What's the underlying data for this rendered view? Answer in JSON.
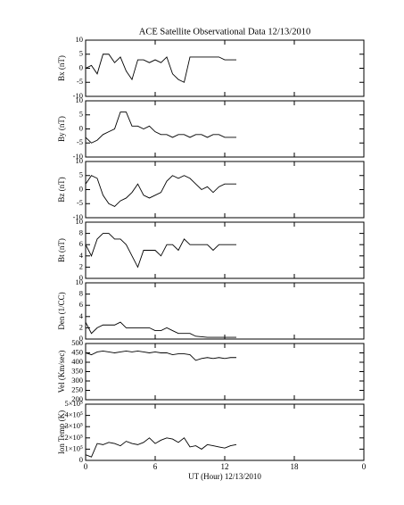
{
  "chart_data": [
    {
      "type": "line",
      "title": "ACE Satellite Observational Data   12/13/2010",
      "ylabel": "Bx (nT)",
      "xlim": [
        0,
        24
      ],
      "xticks": [
        0,
        6,
        12,
        18,
        24
      ],
      "ylim": [
        -10,
        10
      ],
      "yticks": [
        -10,
        -5,
        0,
        5,
        10
      ],
      "x": [
        0,
        0.5,
        1,
        1.5,
        2,
        2.5,
        3,
        3.5,
        4,
        4.5,
        5,
        5.5,
        6,
        6.5,
        7,
        7.5,
        8,
        8.5,
        9,
        9.5,
        10,
        10.5,
        11,
        11.5,
        12,
        12.5,
        13
      ],
      "values": [
        0,
        1,
        -2,
        5,
        5,
        2,
        4,
        -1,
        -4,
        3,
        3,
        2,
        3,
        2,
        4,
        -2,
        -4,
        -5,
        4,
        4,
        4,
        4,
        4,
        4,
        3,
        3,
        3
      ],
      "color": "#000000"
    },
    {
      "type": "line",
      "ylabel": "By (nT)",
      "xlim": [
        0,
        24
      ],
      "xticks": [
        0,
        6,
        12,
        18,
        24
      ],
      "ylim": [
        -10,
        10
      ],
      "yticks": [
        -10,
        -5,
        0,
        5,
        10
      ],
      "x": [
        0,
        0.5,
        1,
        1.5,
        2,
        2.5,
        3,
        3.5,
        4,
        4.5,
        5,
        5.5,
        6,
        6.5,
        7,
        7.5,
        8,
        8.5,
        9,
        9.5,
        10,
        10.5,
        11,
        11.5,
        12,
        12.5,
        13
      ],
      "values": [
        -3,
        -5,
        -4,
        -2,
        -1,
        0,
        6,
        6,
        1,
        1,
        0,
        1,
        -1,
        -2,
        -2,
        -3,
        -2,
        -2,
        -3,
        -2,
        -2,
        -3,
        -2,
        -2,
        -3,
        -3,
        -3
      ],
      "color": "#000000"
    },
    {
      "type": "line",
      "ylabel": "Bz (nT)",
      "xlim": [
        0,
        24
      ],
      "xticks": [
        0,
        6,
        12,
        18,
        24
      ],
      "ylim": [
        -10,
        10
      ],
      "yticks": [
        -10,
        -5,
        0,
        5,
        10
      ],
      "x": [
        0,
        0.5,
        1,
        1.5,
        2,
        2.5,
        3,
        3.5,
        4,
        4.5,
        5,
        5.5,
        6,
        6.5,
        7,
        7.5,
        8,
        8.5,
        9,
        9.5,
        10,
        10.5,
        11,
        11.5,
        12,
        12.5,
        13
      ],
      "values": [
        2,
        5,
        4,
        -2,
        -5,
        -6,
        -4,
        -3,
        -1,
        2,
        -2,
        -3,
        -2,
        -1,
        3,
        5,
        4,
        5,
        4,
        2,
        0,
        1,
        -1,
        1,
        2,
        2,
        2
      ],
      "color": "#000000"
    },
    {
      "type": "line",
      "ylabel": "Bt (nT)",
      "xlim": [
        0,
        24
      ],
      "xticks": [
        0,
        6,
        12,
        18,
        24
      ],
      "ylim": [
        0,
        10
      ],
      "yticks": [
        0,
        2,
        4,
        6,
        8,
        10
      ],
      "x": [
        0,
        0.5,
        1,
        1.5,
        2,
        2.5,
        3,
        3.5,
        4,
        4.5,
        5,
        5.5,
        6,
        6.5,
        7,
        7.5,
        8,
        8.5,
        9,
        9.5,
        10,
        10.5,
        11,
        11.5,
        12,
        12.5,
        13
      ],
      "values": [
        6,
        4,
        7,
        8,
        8,
        7,
        7,
        6,
        4,
        2,
        5,
        5,
        5,
        4,
        6,
        6,
        5,
        7,
        6,
        6,
        6,
        6,
        5,
        6,
        6,
        6,
        6
      ],
      "color": "#000000"
    },
    {
      "type": "line",
      "ylabel": "Den (1/CC)",
      "xlim": [
        0,
        24
      ],
      "xticks": [
        0,
        6,
        12,
        18,
        24
      ],
      "ylim": [
        0,
        10
      ],
      "yticks": [
        0,
        2,
        4,
        6,
        8,
        10
      ],
      "x": [
        0,
        0.5,
        1,
        1.5,
        2,
        2.5,
        3,
        3.5,
        4,
        4.5,
        5,
        5.5,
        6,
        6.5,
        7,
        7.5,
        8,
        8.5,
        9,
        9.5,
        10,
        10.5,
        11,
        11.5,
        12,
        12.5,
        13
      ],
      "values": [
        3,
        1,
        2,
        2.5,
        2.5,
        2.5,
        3,
        2,
        2,
        2,
        2,
        2,
        1.5,
        1.5,
        2,
        1.5,
        1,
        1,
        1,
        0.5,
        0.4,
        0.3,
        0.3,
        0.3,
        0.3,
        0.3,
        0.3
      ],
      "color": "#000000"
    },
    {
      "type": "line",
      "ylabel": "Vel (Km/sec)",
      "xlim": [
        0,
        24
      ],
      "xticks": [
        0,
        6,
        12,
        18,
        24
      ],
      "ylim": [
        200,
        500
      ],
      "yticks": [
        200,
        250,
        300,
        350,
        400,
        450,
        500
      ],
      "x": [
        0,
        0.5,
        1,
        1.5,
        2,
        2.5,
        3,
        3.5,
        4,
        4.5,
        5,
        5.5,
        6,
        6.5,
        7,
        7.5,
        8,
        8.5,
        9,
        9.5,
        10,
        10.5,
        11,
        11.5,
        12,
        12.5,
        13
      ],
      "values": [
        450,
        440,
        455,
        460,
        455,
        450,
        455,
        460,
        455,
        460,
        455,
        450,
        455,
        450,
        450,
        440,
        445,
        445,
        440,
        410,
        420,
        425,
        420,
        425,
        420,
        425,
        425
      ],
      "color": "#000000"
    },
    {
      "type": "line",
      "ylabel": "Ion Temp (K)",
      "xlabel": "UT (Hour)  12/13/2010",
      "xlim": [
        0,
        24
      ],
      "xticks": [
        0,
        6,
        12,
        18,
        {
          "value": 24,
          "label": "0"
        }
      ],
      "ylim": [
        0,
        500000
      ],
      "yticks": [
        0,
        {
          "value": 100000,
          "label": "1×10⁵"
        },
        {
          "value": 200000,
          "label": "2×10⁵"
        },
        {
          "value": 300000,
          "label": "3×10⁵"
        },
        {
          "value": 400000,
          "label": "4×10⁵"
        },
        {
          "value": 500000,
          "label": "5×10⁵"
        }
      ],
      "x": [
        0,
        0.5,
        1,
        1.5,
        2,
        2.5,
        3,
        3.5,
        4,
        4.5,
        5,
        5.5,
        6,
        6.5,
        7,
        7.5,
        8,
        8.5,
        9,
        9.5,
        10,
        10.5,
        11,
        11.5,
        12,
        12.5,
        13
      ],
      "values": [
        50000,
        30000,
        150000,
        140000,
        160000,
        150000,
        130000,
        170000,
        150000,
        140000,
        160000,
        200000,
        150000,
        180000,
        200000,
        190000,
        160000,
        200000,
        120000,
        130000,
        100000,
        140000,
        130000,
        120000,
        110000,
        130000,
        140000
      ],
      "color": "#000000"
    }
  ]
}
